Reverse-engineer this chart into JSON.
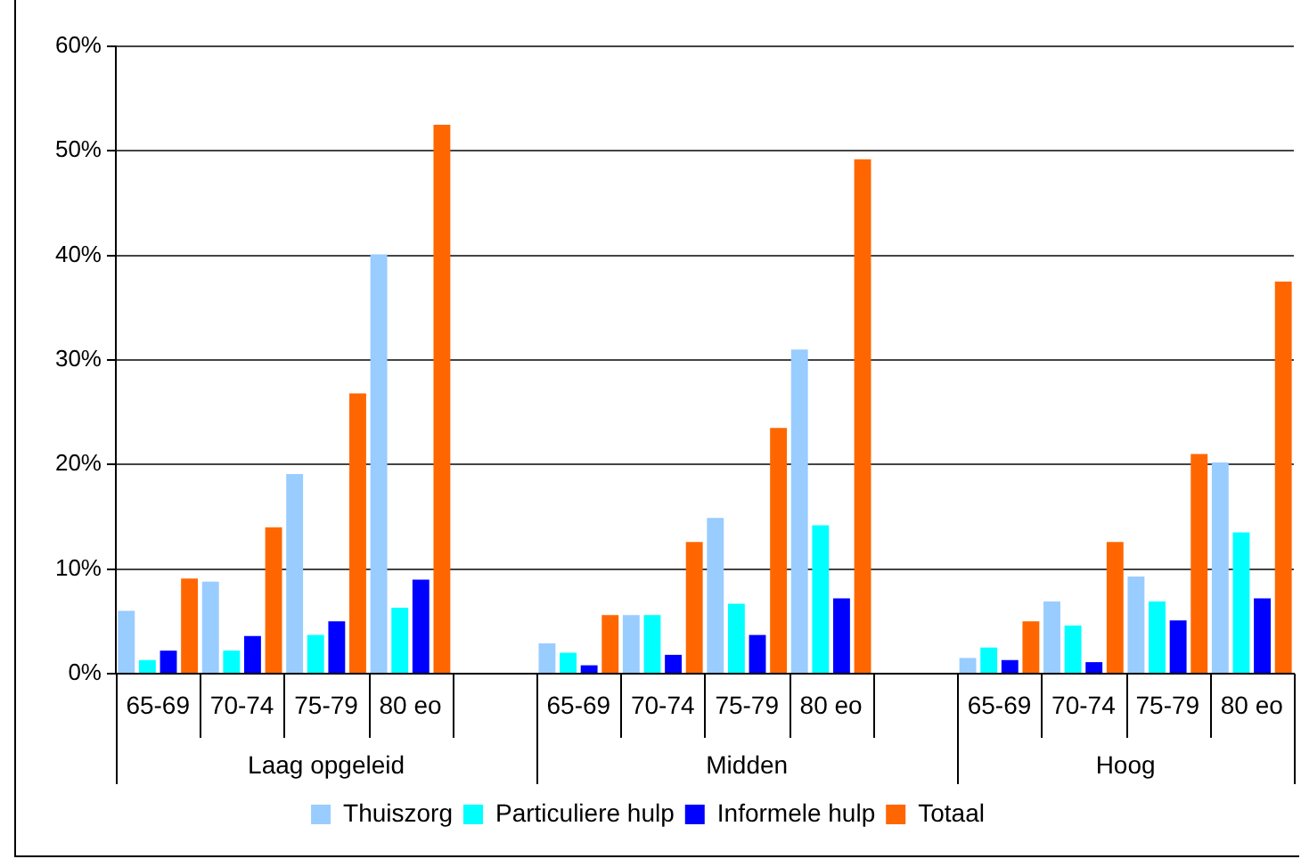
{
  "chart_data": {
    "type": "bar",
    "categories": [
      "65-69",
      "70-74",
      "75-79",
      "80 eo",
      null,
      "65-69",
      "70-74",
      "75-79",
      "80 eo",
      null,
      "65-69",
      "70-74",
      "75-79",
      "80 eo"
    ],
    "series": [
      {
        "name": "Thuiszorg",
        "color": "#99ccff",
        "values": [
          6.0,
          8.8,
          19.1,
          40.1,
          null,
          2.9,
          5.6,
          14.9,
          31.0,
          null,
          1.5,
          6.9,
          9.3,
          20.2
        ]
      },
      {
        "name": "Particuliere hulp",
        "color": "#00ffff",
        "values": [
          1.3,
          2.2,
          3.7,
          6.3,
          null,
          2.0,
          5.6,
          6.7,
          14.2,
          null,
          2.5,
          4.6,
          6.9,
          13.5
        ]
      },
      {
        "name": "Informele hulp",
        "color": "#0000ff",
        "values": [
          2.2,
          3.6,
          5.0,
          9.0,
          null,
          0.8,
          1.8,
          3.7,
          7.2,
          null,
          1.3,
          1.1,
          5.1,
          7.2
        ]
      },
      {
        "name": "Totaal",
        "color": "#ff6600",
        "values": [
          9.1,
          14.0,
          26.8,
          52.5,
          null,
          5.6,
          12.6,
          23.5,
          49.2,
          null,
          5.0,
          12.6,
          21.0,
          37.5
        ]
      }
    ],
    "annotations": [
      "Laag opgeleid",
      "Midden",
      "Hoog"
    ],
    "ylim": [
      0,
      60
    ],
    "yticks": [
      {
        "value": 0,
        "label": "0%"
      },
      {
        "value": 10,
        "label": "10%"
      },
      {
        "value": 20,
        "label": "20%"
      },
      {
        "value": 30,
        "label": "30%"
      },
      {
        "value": 40,
        "label": "40%"
      },
      {
        "value": 50,
        "label": "50%"
      },
      {
        "value": 60,
        "label": "60%"
      }
    ],
    "grid": "y",
    "legend": "bottom"
  }
}
